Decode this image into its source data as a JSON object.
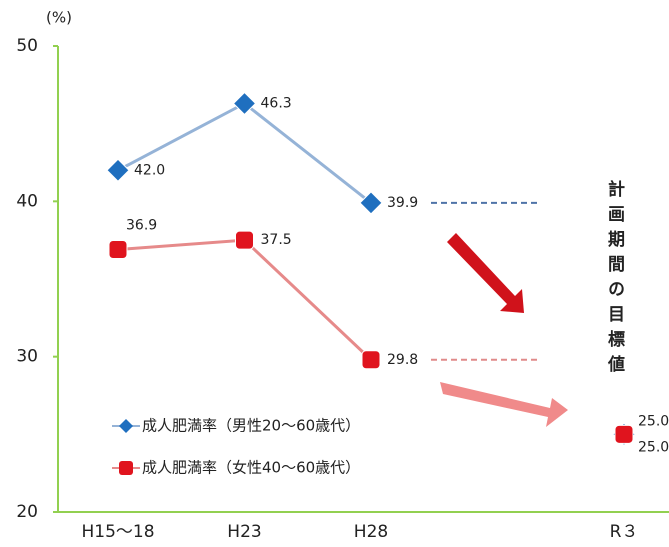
{
  "chart_data": {
    "type": "line",
    "y_label": "(%)",
    "annotation": "計画期間の目標値",
    "categories": [
      "H15〜18",
      "H23",
      "H28",
      null,
      "R３"
    ],
    "series": [
      {
        "name": "成人肥満率（男性20〜60歳代）",
        "color": "#95b3d7",
        "marker_color": "#1f6fbf",
        "marker": "diamond",
        "values": [
          42.0,
          46.3,
          39.9,
          null,
          25.0
        ],
        "value_labels": [
          "42.0",
          "46.3",
          "39.9",
          null,
          "25.0"
        ]
      },
      {
        "name": "成人肥満率（女性40〜60歳代）",
        "color": "#e68a8a",
        "marker_color": "#e0141e",
        "marker": "square",
        "values": [
          36.9,
          37.5,
          29.8,
          null,
          25.0
        ],
        "value_labels": [
          "36.9",
          "37.5",
          "29.8",
          null,
          "25.0"
        ]
      }
    ],
    "ylim": [
      20,
      50
    ],
    "yticks": [
      20,
      30,
      40,
      50
    ],
    "grid": false
  }
}
